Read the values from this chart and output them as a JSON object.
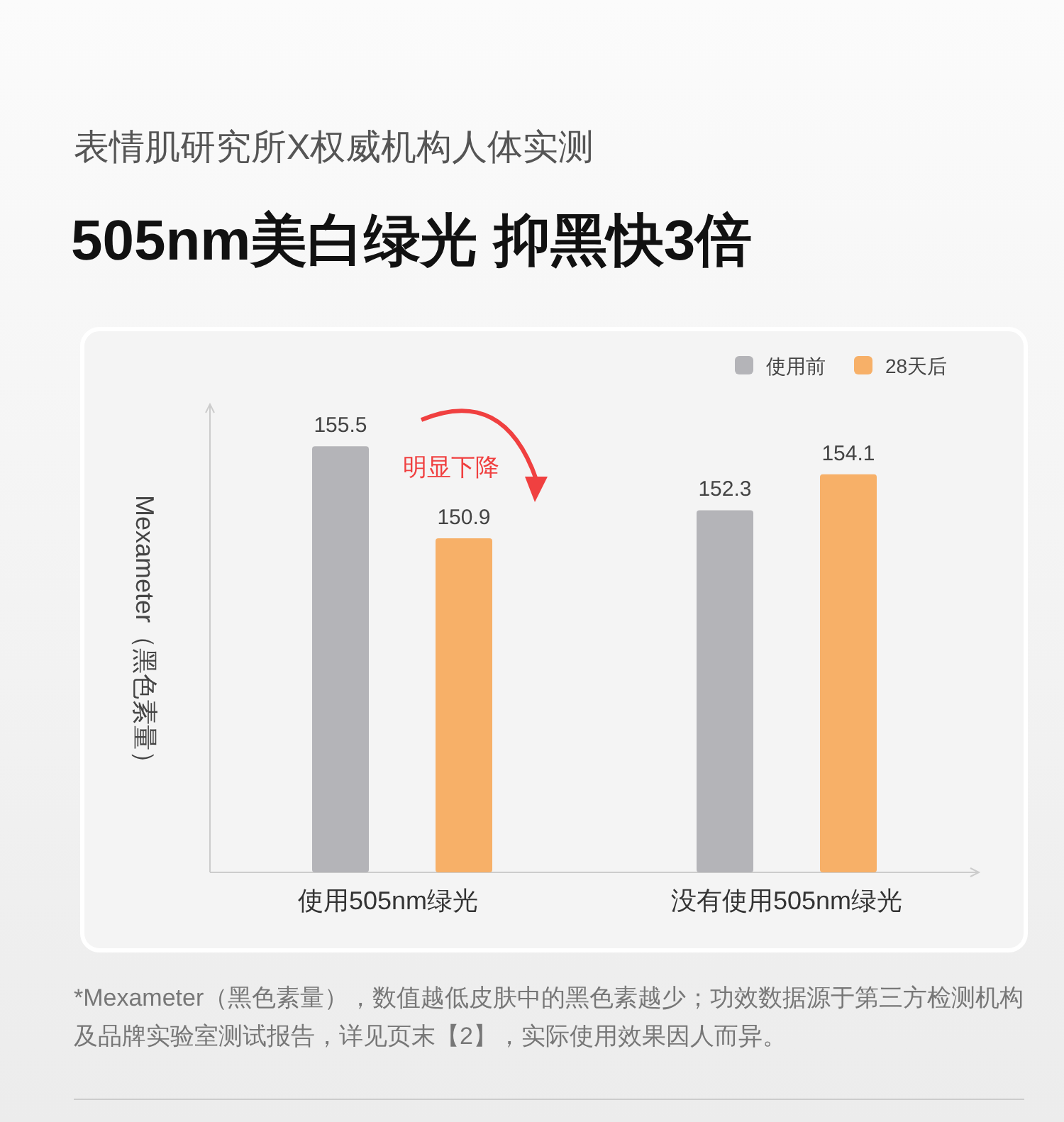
{
  "chart_data": {
    "type": "bar",
    "subtitle": "表情肌研究所X权威机构人体实测",
    "title": "505nm美白绿光 抑黑快3倍",
    "ylabel": "Mexameter（黑色素量）",
    "categories": [
      "使用505nm绿光",
      "没有使用505nm绿光"
    ],
    "series": [
      {
        "name": "使用前",
        "color": "#b4b4b8",
        "values": [
          155.5,
          152.3
        ]
      },
      {
        "name": "28天后",
        "color": "#f7b068",
        "values": [
          150.9,
          154.1
        ]
      }
    ],
    "ylim": [
      134.2,
      157.6
    ],
    "data_labels": true,
    "legend": "top right",
    "annotations": [
      "明显下降",
      "*Mexameter（黑色素量），数值越低皮肤中的黑色素越少；功效数据源于第三方检测机构及品牌实验室测试报告，详见页末【2】，实际使用效果因人而异。"
    ]
  }
}
